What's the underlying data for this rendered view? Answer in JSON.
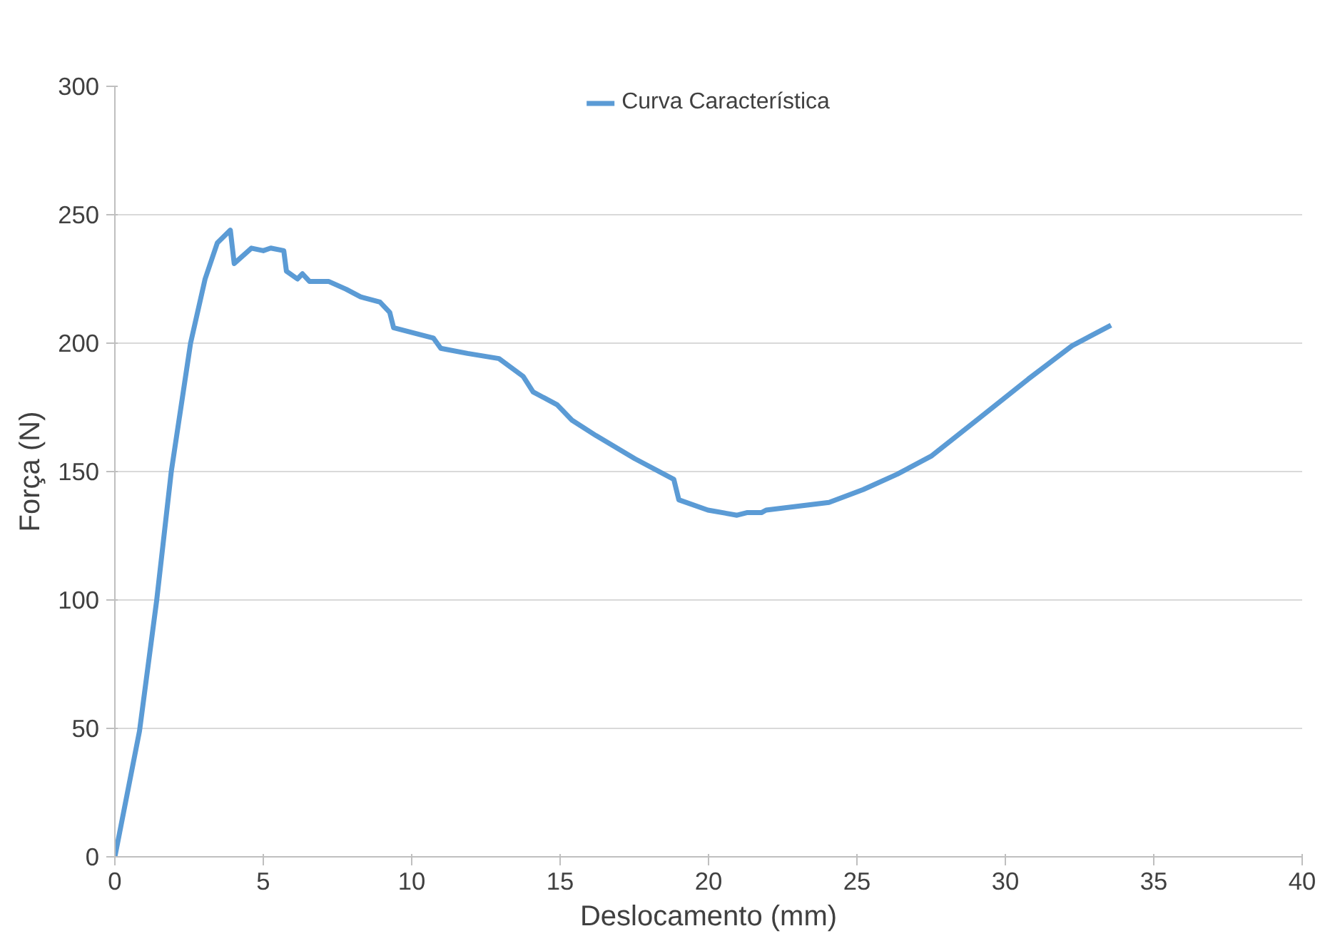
{
  "chart_data": {
    "type": "line",
    "xlabel": "Deslocamento (mm)",
    "ylabel": "Força (N)",
    "xlim": [
      0,
      40
    ],
    "xticks": [
      0,
      5,
      10,
      15,
      20,
      25,
      30,
      35,
      40
    ],
    "ylim": [
      0,
      300
    ],
    "yticks": [
      0,
      50,
      100,
      150,
      200,
      250,
      300
    ],
    "grid": "y",
    "legend": "top",
    "marker": "none",
    "line_style": "solid",
    "series": [
      {
        "name": "Curva Característica",
        "color": "#5b9bd5",
        "x": [
          0,
          0.83,
          1.41,
          1.9,
          2.55,
          3.04,
          3.45,
          3.89,
          4.02,
          4.6,
          5.0,
          5.25,
          5.69,
          5.78,
          6.15,
          6.32,
          6.56,
          7.21,
          7.79,
          8.28,
          8.93,
          9.26,
          9.39,
          10.73,
          10.98,
          11.88,
          12.94,
          13.76,
          14.09,
          14.9,
          15.4,
          16.21,
          17.52,
          18.83,
          19.0,
          19.98,
          20.96,
          21.29,
          21.78,
          21.94,
          24.06,
          25.21,
          26.36,
          27.5,
          29.14,
          30.77,
          32.25,
          33.56
        ],
        "values": [
          0,
          49,
          100,
          150,
          200,
          225,
          239,
          244,
          231,
          237,
          236,
          237,
          236,
          228,
          225,
          227,
          224,
          224,
          221,
          218,
          216,
          212,
          206,
          202,
          198,
          196,
          194,
          187,
          181,
          176,
          170,
          164,
          155,
          147,
          139,
          135,
          133,
          134,
          134,
          135,
          138,
          143,
          149,
          156,
          171,
          186,
          199,
          207
        ]
      }
    ]
  }
}
